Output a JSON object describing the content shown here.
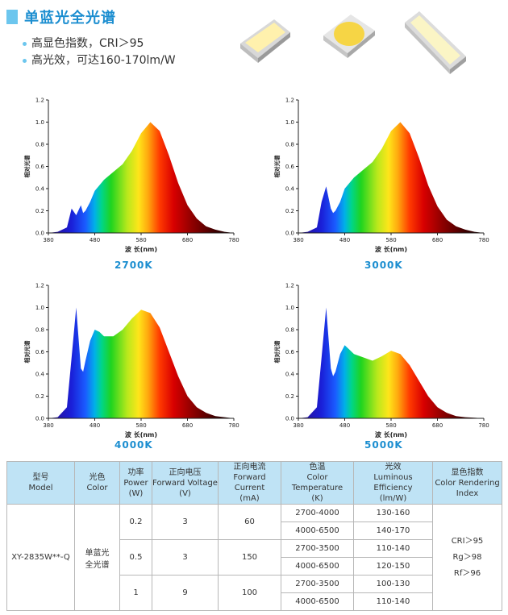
{
  "header": {
    "title": "单蓝光全光谱",
    "bullets": [
      "高显色指数，CRI＞95",
      "高光效，可达160-170lm/W"
    ]
  },
  "charts": [
    {
      "label": "2700K",
      "ylabel": "相对光谱",
      "xlabel": "波 长(nm)"
    },
    {
      "label": "3000K",
      "ylabel": "相对光谱",
      "xlabel": "波 长(nm)"
    },
    {
      "label": "4000K",
      "ylabel": "相对光谱",
      "xlabel": "波 长(nm)"
    },
    {
      "label": "5000K",
      "ylabel": "相对光谱",
      "xlabel": "波 长(nm)"
    }
  ],
  "chart_data": [
    {
      "type": "area",
      "title": "2700K",
      "ylabel": "相对光谱",
      "xlabel": "波 长(nm)",
      "xlim": [
        380,
        780
      ],
      "ylim": [
        0,
        1.2
      ],
      "xticks": [
        "380",
        "480",
        "580",
        "680",
        "780"
      ],
      "yticks": [
        "0.0",
        "0.2",
        "0.4",
        "0.6",
        "0.8",
        "1.0",
        "1.2"
      ],
      "x": [
        380,
        400,
        420,
        430,
        440,
        450,
        455,
        460,
        470,
        480,
        500,
        520,
        540,
        560,
        580,
        600,
        620,
        640,
        660,
        680,
        700,
        720,
        740,
        760,
        780
      ],
      "y": [
        0,
        0.01,
        0.05,
        0.22,
        0.16,
        0.25,
        0.18,
        0.2,
        0.28,
        0.38,
        0.48,
        0.55,
        0.62,
        0.74,
        0.9,
        1.0,
        0.92,
        0.7,
        0.45,
        0.25,
        0.13,
        0.06,
        0.03,
        0.01,
        0
      ]
    },
    {
      "type": "area",
      "title": "3000K",
      "ylabel": "相对光谱",
      "xlabel": "波 长(nm)",
      "xlim": [
        380,
        780
      ],
      "ylim": [
        0,
        1.2
      ],
      "xticks": [
        "380",
        "480",
        "580",
        "680",
        "780"
      ],
      "yticks": [
        "0.0",
        "0.2",
        "0.4",
        "0.6",
        "0.8",
        "1.0",
        "1.2"
      ],
      "x": [
        380,
        400,
        420,
        430,
        440,
        450,
        455,
        460,
        470,
        480,
        500,
        520,
        540,
        560,
        580,
        600,
        620,
        640,
        660,
        680,
        700,
        720,
        740,
        760,
        780
      ],
      "y": [
        0,
        0.01,
        0.05,
        0.28,
        0.42,
        0.22,
        0.18,
        0.2,
        0.28,
        0.4,
        0.5,
        0.57,
        0.64,
        0.76,
        0.92,
        1.0,
        0.9,
        0.68,
        0.43,
        0.24,
        0.12,
        0.06,
        0.03,
        0.01,
        0
      ]
    },
    {
      "type": "area",
      "title": "4000K",
      "ylabel": "相对光谱",
      "xlabel": "波 长(nm)",
      "xlim": [
        380,
        780
      ],
      "ylim": [
        0,
        1.2
      ],
      "xticks": [
        "380",
        "480",
        "580",
        "680",
        "780"
      ],
      "yticks": [
        "0.0",
        "0.2",
        "0.4",
        "0.6",
        "0.8",
        "1.0",
        "1.2"
      ],
      "x": [
        380,
        400,
        420,
        430,
        440,
        450,
        455,
        460,
        470,
        480,
        490,
        500,
        520,
        540,
        560,
        580,
        600,
        620,
        640,
        660,
        680,
        700,
        720,
        740,
        760,
        780
      ],
      "y": [
        0,
        0.01,
        0.1,
        0.55,
        1.0,
        0.45,
        0.42,
        0.52,
        0.7,
        0.8,
        0.78,
        0.74,
        0.74,
        0.8,
        0.9,
        0.98,
        0.95,
        0.82,
        0.6,
        0.38,
        0.2,
        0.1,
        0.05,
        0.02,
        0.01,
        0
      ]
    },
    {
      "type": "area",
      "title": "5000K",
      "ylabel": "相对光谱",
      "xlabel": "波 长(nm)",
      "xlim": [
        380,
        780
      ],
      "ylim": [
        0,
        1.2
      ],
      "xticks": [
        "380",
        "480",
        "580",
        "680",
        "780"
      ],
      "yticks": [
        "0.0",
        "0.2",
        "0.4",
        "0.6",
        "0.8",
        "1.0",
        "1.2"
      ],
      "x": [
        380,
        400,
        420,
        430,
        440,
        450,
        455,
        460,
        470,
        480,
        490,
        500,
        520,
        540,
        560,
        580,
        600,
        620,
        640,
        660,
        680,
        700,
        720,
        740,
        760,
        780
      ],
      "y": [
        0,
        0.01,
        0.1,
        0.55,
        1.0,
        0.45,
        0.38,
        0.42,
        0.58,
        0.66,
        0.62,
        0.58,
        0.55,
        0.52,
        0.56,
        0.61,
        0.58,
        0.48,
        0.34,
        0.2,
        0.1,
        0.05,
        0.02,
        0.01,
        0.005,
        0
      ]
    }
  ],
  "table": {
    "headers": [
      [
        "型号",
        "Model"
      ],
      [
        "光色",
        "Color"
      ],
      [
        "功率",
        "Power",
        "(W)"
      ],
      [
        "正向电压",
        "Forward Voltage",
        "(V)"
      ],
      [
        "正向电流",
        "Forward Current",
        "(mA)"
      ],
      [
        "色温",
        "Color Temperature",
        "(K)"
      ],
      [
        "光效",
        "Luminous Efficiency",
        "(lm/W)"
      ],
      [
        "显色指数",
        "Color Rendering",
        "Index"
      ]
    ],
    "model": "XY-2835W**-Q",
    "color": [
      "单蓝光",
      "全光谱"
    ],
    "groups": [
      {
        "power": "0.2",
        "voltage": "3",
        "current": "60",
        "rows": [
          [
            "2700-4000",
            "130-160"
          ],
          [
            "4000-6500",
            "140-170"
          ]
        ]
      },
      {
        "power": "0.5",
        "voltage": "3",
        "current": "150",
        "rows": [
          [
            "2700-3500",
            "110-140"
          ],
          [
            "4000-6500",
            "120-150"
          ]
        ]
      },
      {
        "power": "1",
        "voltage": "9",
        "current": "100",
        "rows": [
          [
            "2700-3500",
            "100-130"
          ],
          [
            "4000-6500",
            "110-140"
          ]
        ]
      }
    ],
    "cri": [
      "CRI＞95",
      "Rg＞98",
      "Rf＞96"
    ]
  }
}
